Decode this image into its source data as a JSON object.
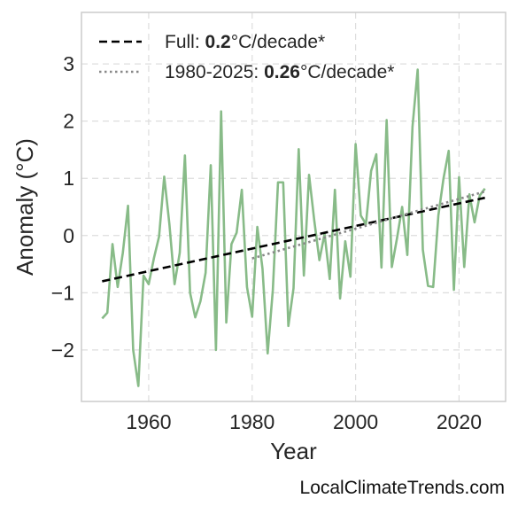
{
  "chart_data": {
    "type": "line",
    "xlabel": "Year",
    "ylabel": "Anomaly (°C)",
    "xlim": [
      1947,
      2029
    ],
    "ylim": [
      -2.9,
      3.9
    ],
    "xticks": [
      1960,
      1980,
      2000,
      2020
    ],
    "yticks": [
      -2,
      -1,
      0,
      1,
      2,
      3
    ],
    "ytick_labels": [
      "−2",
      "−1",
      "0",
      "1",
      "2",
      "3"
    ],
    "grid": true,
    "legend_position": "top-left",
    "series": [
      {
        "style": "solid",
        "color": "#88bb88",
        "x": [
          1951,
          1952,
          1953,
          1954,
          1955,
          1956,
          1957,
          1958,
          1959,
          1960,
          1961,
          1962,
          1963,
          1964,
          1965,
          1966,
          1967,
          1968,
          1969,
          1970,
          1971,
          1972,
          1973,
          1974,
          1975,
          1976,
          1977,
          1978,
          1979,
          1980,
          1981,
          1982,
          1983,
          1984,
          1985,
          1986,
          1987,
          1988,
          1989,
          1990,
          1991,
          1992,
          1993,
          1994,
          1995,
          1996,
          1997,
          1998,
          1999,
          2000,
          2001,
          2002,
          2003,
          2004,
          2005,
          2006,
          2007,
          2008,
          2009,
          2010,
          2011,
          2012,
          2013,
          2014,
          2015,
          2016,
          2017,
          2018,
          2019,
          2020,
          2021,
          2022,
          2023,
          2024,
          2025
        ],
        "y": [
          -1.45,
          -1.35,
          -0.15,
          -0.9,
          -0.3,
          0.52,
          -2.0,
          -2.63,
          -0.7,
          -0.85,
          -0.4,
          -0.02,
          1.03,
          0.2,
          -0.85,
          -0.3,
          1.4,
          -1.0,
          -1.43,
          -1.15,
          -0.65,
          1.23,
          -2.0,
          2.17,
          -1.52,
          -0.15,
          0.05,
          0.8,
          -0.9,
          -1.42,
          0.15,
          -0.58,
          -2.06,
          -0.95,
          0.93,
          0.93,
          -1.58,
          -0.92,
          1.51,
          -0.7,
          1.06,
          0.27,
          -0.43,
          0.03,
          -0.76,
          0.8,
          -1.1,
          -0.1,
          -0.72,
          1.6,
          0.35,
          0.2,
          1.13,
          1.42,
          -0.56,
          2.02,
          -0.55,
          -0.05,
          0.5,
          -0.34,
          1.9,
          2.9,
          -0.25,
          -0.88,
          -0.9,
          0.35,
          1.0,
          1.48,
          -0.95,
          1.02,
          -0.55,
          0.72,
          0.23,
          0.7,
          0.82
        ]
      },
      {
        "name": "Full",
        "style": "dashed",
        "color": "#000000",
        "x": [
          1951,
          2025
        ],
        "y": [
          -0.8,
          0.66
        ]
      },
      {
        "name": "1980-2025",
        "style": "dotted",
        "color": "#888888",
        "x": [
          1980,
          2025
        ],
        "y": [
          -0.4,
          0.77
        ]
      }
    ],
    "legend": [
      {
        "prefix": "Full: ",
        "value": "0.2",
        "suffix": "°C/decade*"
      },
      {
        "prefix": "1980-2025: ",
        "value": "0.26",
        "suffix": "°C/decade*"
      }
    ]
  },
  "credit": "LocalClimateTrends.com"
}
